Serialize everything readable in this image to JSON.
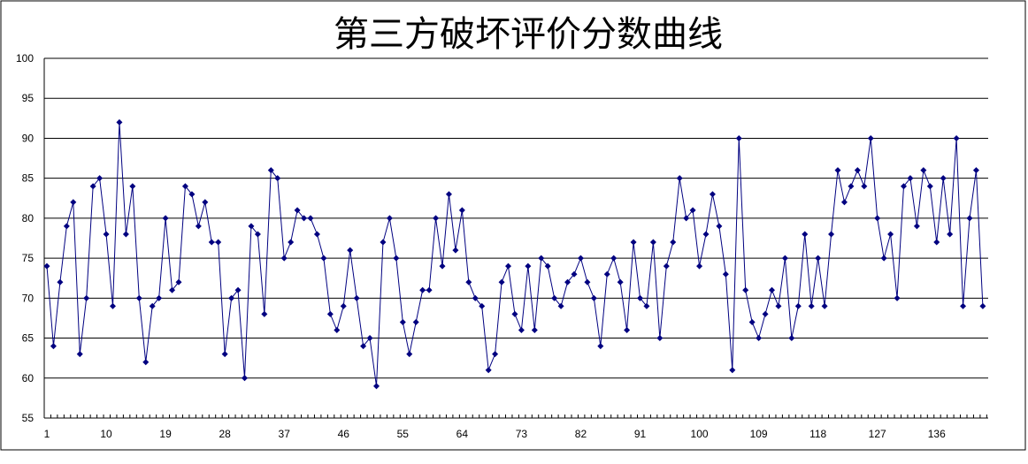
{
  "chart_data": {
    "type": "line",
    "title": "第三方破坏评价分数曲线",
    "xlabel": "",
    "ylabel": "",
    "ylim": [
      55,
      100
    ],
    "yticks": [
      55,
      60,
      65,
      70,
      75,
      80,
      85,
      90,
      95,
      100
    ],
    "xtick_labels": [
      "1",
      "10",
      "19",
      "28",
      "37",
      "46",
      "55",
      "64",
      "73",
      "82",
      "91",
      "100",
      "109",
      "118",
      "127",
      "136"
    ],
    "grid": true,
    "legend": "none",
    "series_color": "#000080",
    "series": [
      {
        "name": "score",
        "values": [
          74,
          64,
          72,
          79,
          82,
          63,
          70,
          84,
          85,
          78,
          69,
          92,
          78,
          84,
          70,
          62,
          69,
          70,
          80,
          71,
          72,
          84,
          83,
          79,
          82,
          77,
          77,
          63,
          70,
          71,
          60,
          79,
          78,
          68,
          86,
          85,
          75,
          77,
          81,
          80,
          80,
          78,
          75,
          68,
          66,
          69,
          76,
          70,
          64,
          65,
          59,
          77,
          80,
          75,
          67,
          63,
          67,
          71,
          71,
          80,
          74,
          83,
          76,
          81,
          72,
          70,
          69,
          61,
          63,
          72,
          74,
          68,
          66,
          74,
          66,
          75,
          74,
          70,
          69,
          72,
          73,
          75,
          72,
          70,
          64,
          73,
          75,
          72,
          66,
          77,
          70,
          69,
          77,
          65,
          74,
          77,
          85,
          80,
          81,
          74,
          78,
          83,
          79,
          73,
          61,
          90,
          71,
          67,
          65,
          68,
          71,
          69,
          75,
          65,
          69,
          78,
          69,
          75,
          69,
          78,
          86,
          82,
          84,
          86,
          84,
          90,
          80,
          75,
          78,
          70,
          84,
          85,
          79,
          86,
          84,
          77,
          85,
          78,
          90,
          69,
          80,
          86,
          69
        ]
      }
    ]
  }
}
